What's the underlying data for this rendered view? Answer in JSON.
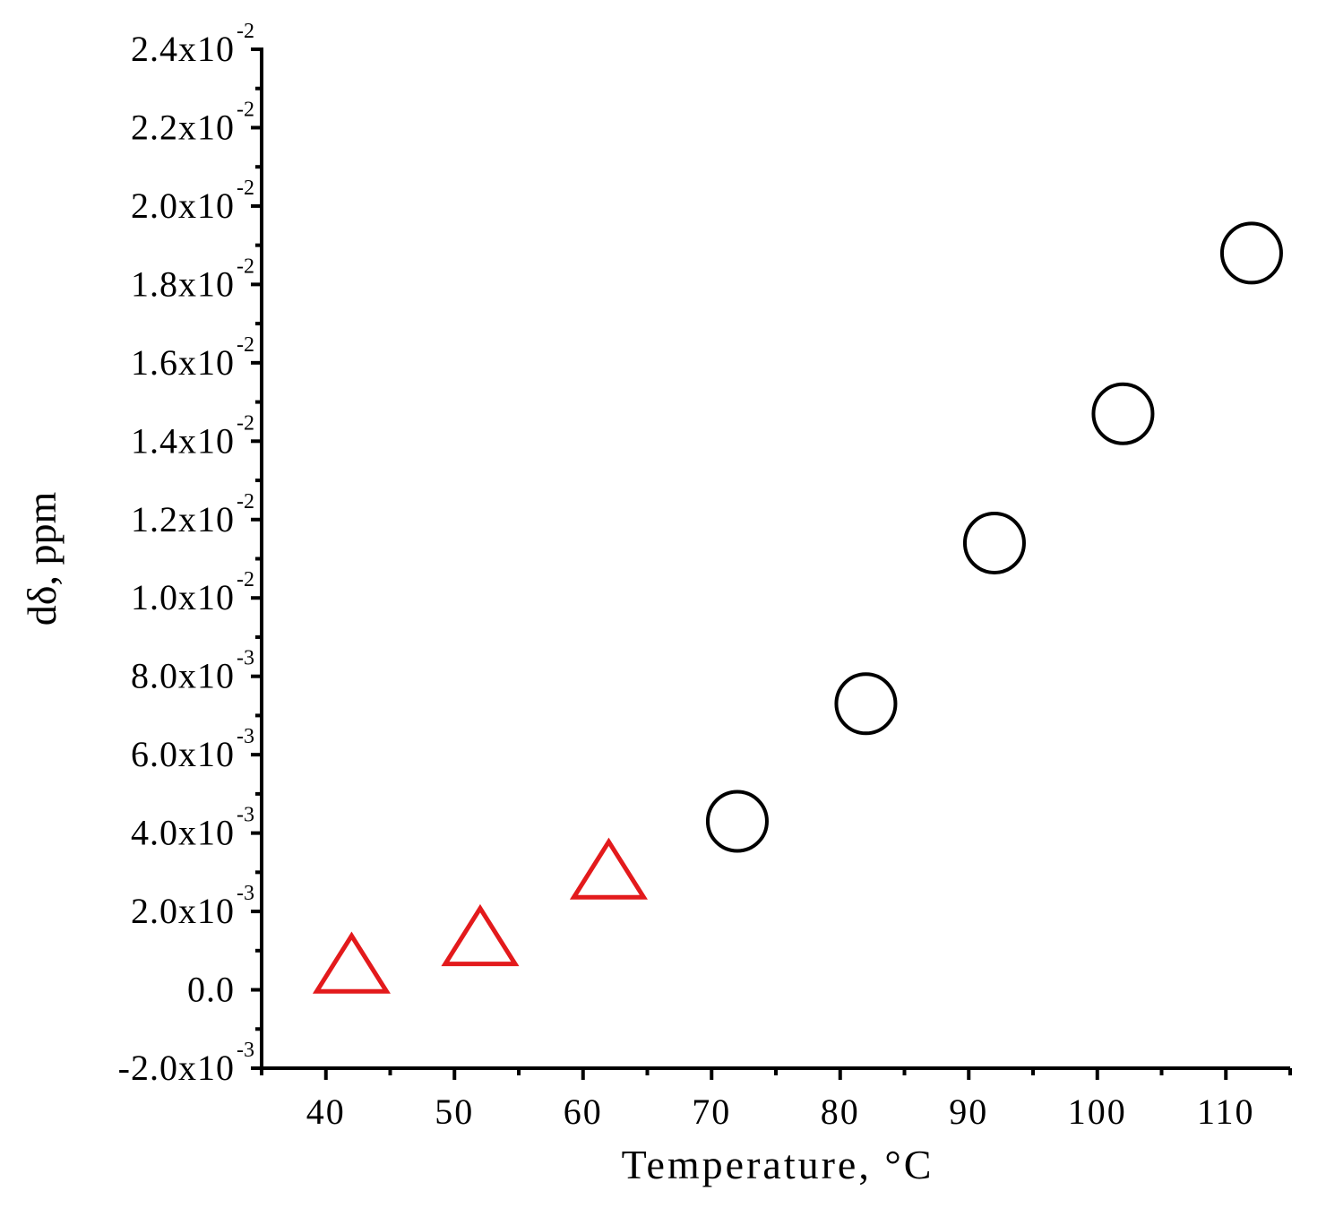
{
  "chart_data": {
    "type": "scatter",
    "xlabel": "Temperature, °C",
    "ylabel": "dδ, ppm",
    "xlim": [
      35,
      115
    ],
    "ylim": [
      -0.002,
      0.024
    ],
    "xticks": [
      40,
      50,
      60,
      70,
      80,
      90,
      100,
      110
    ],
    "yticks": [
      {
        "value": 0.024,
        "mantissa": "2.4x10",
        "exp": "-2"
      },
      {
        "value": 0.022,
        "mantissa": "2.2x10",
        "exp": "-2"
      },
      {
        "value": 0.02,
        "mantissa": "2.0x10",
        "exp": "-2"
      },
      {
        "value": 0.018,
        "mantissa": "1.8x10",
        "exp": "-2"
      },
      {
        "value": 0.016,
        "mantissa": "1.6x10",
        "exp": "-2"
      },
      {
        "value": 0.014,
        "mantissa": "1.4x10",
        "exp": "-2"
      },
      {
        "value": 0.012,
        "mantissa": "1.2x10",
        "exp": "-2"
      },
      {
        "value": 0.01,
        "mantissa": "1.0x10",
        "exp": "-2"
      },
      {
        "value": 0.008,
        "mantissa": "8.0x10",
        "exp": "-3"
      },
      {
        "value": 0.006,
        "mantissa": "6.0x10",
        "exp": "-3"
      },
      {
        "value": 0.004,
        "mantissa": "4.0x10",
        "exp": "-3"
      },
      {
        "value": 0.002,
        "mantissa": "2.0x10",
        "exp": "-3"
      },
      {
        "value": 0.0,
        "mantissa": "0.0",
        "exp": ""
      },
      {
        "value": -0.002,
        "mantissa": "-2.0x10",
        "exp": "-3"
      }
    ],
    "grid": false,
    "legend": "none",
    "series": [
      {
        "marker": "triangle-open",
        "color": "#e31a1c",
        "x": [
          42,
          52,
          62
        ],
        "y": [
          0.0005,
          0.0012,
          0.0029
        ]
      },
      {
        "marker": "circle-open",
        "color": "#000000",
        "x": [
          72,
          82,
          92,
          102,
          112
        ],
        "y": [
          0.0043,
          0.0073,
          0.0114,
          0.0147,
          0.0188
        ]
      }
    ]
  }
}
